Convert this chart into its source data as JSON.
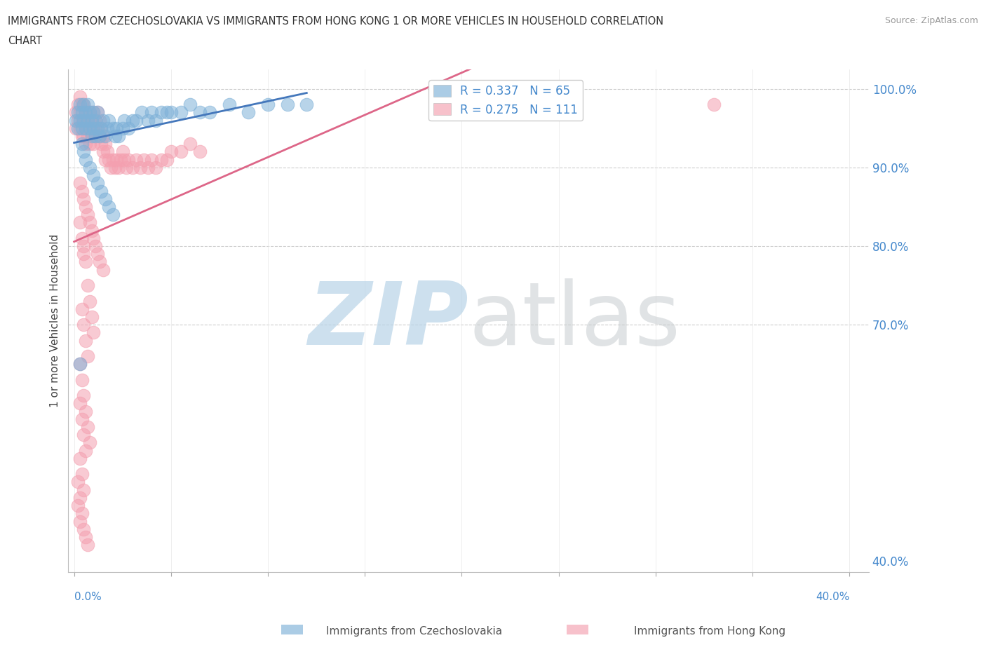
{
  "title": "IMMIGRANTS FROM CZECHOSLOVAKIA VS IMMIGRANTS FROM HONG KONG 1 OR MORE VEHICLES IN HOUSEHOLD CORRELATION\nCHART",
  "source": "Source: ZipAtlas.com",
  "ylabel": "1 or more Vehicles in Household",
  "ylabel_right_ticks": [
    "100.0%",
    "90.0%",
    "80.0%",
    "70.0%",
    "40.0%"
  ],
  "ylabel_right_vals": [
    1.0,
    0.9,
    0.8,
    0.7,
    0.4
  ],
  "xlim": [
    -0.003,
    0.41
  ],
  "ylim": [
    0.385,
    1.025
  ],
  "legend_r1": "R = 0.337",
  "legend_n1": "N = 65",
  "legend_r2": "R = 0.275",
  "legend_n2": "N = 111",
  "color_czech": "#7EB1D8",
  "color_hk": "#F4A0B0",
  "grid_color": "#CCCCCC",
  "background_color": "#FFFFFF",
  "czech_x": [
    0.001,
    0.002,
    0.002,
    0.003,
    0.003,
    0.004,
    0.004,
    0.005,
    0.005,
    0.006,
    0.006,
    0.007,
    0.007,
    0.008,
    0.008,
    0.009,
    0.009,
    0.01,
    0.01,
    0.011,
    0.011,
    0.012,
    0.012,
    0.013,
    0.014,
    0.015,
    0.016,
    0.017,
    0.018,
    0.02,
    0.021,
    0.022,
    0.023,
    0.025,
    0.026,
    0.028,
    0.03,
    0.032,
    0.035,
    0.038,
    0.04,
    0.042,
    0.045,
    0.048,
    0.05,
    0.055,
    0.06,
    0.065,
    0.07,
    0.08,
    0.09,
    0.1,
    0.11,
    0.12,
    0.004,
    0.005,
    0.006,
    0.008,
    0.01,
    0.012,
    0.014,
    0.016,
    0.018,
    0.02,
    0.003
  ],
  "czech_y": [
    0.96,
    0.97,
    0.95,
    0.98,
    0.96,
    0.97,
    0.95,
    0.98,
    0.96,
    0.97,
    0.95,
    0.98,
    0.96,
    0.97,
    0.95,
    0.96,
    0.94,
    0.97,
    0.95,
    0.96,
    0.94,
    0.97,
    0.95,
    0.94,
    0.95,
    0.96,
    0.94,
    0.95,
    0.96,
    0.95,
    0.94,
    0.95,
    0.94,
    0.95,
    0.96,
    0.95,
    0.96,
    0.96,
    0.97,
    0.96,
    0.97,
    0.96,
    0.97,
    0.97,
    0.97,
    0.97,
    0.98,
    0.97,
    0.97,
    0.98,
    0.97,
    0.98,
    0.98,
    0.98,
    0.93,
    0.92,
    0.91,
    0.9,
    0.89,
    0.88,
    0.87,
    0.86,
    0.85,
    0.84,
    0.65
  ],
  "hk_x": [
    0.001,
    0.001,
    0.002,
    0.002,
    0.003,
    0.003,
    0.003,
    0.004,
    0.004,
    0.004,
    0.005,
    0.005,
    0.005,
    0.006,
    0.006,
    0.006,
    0.007,
    0.007,
    0.008,
    0.008,
    0.008,
    0.009,
    0.009,
    0.01,
    0.01,
    0.01,
    0.011,
    0.011,
    0.012,
    0.012,
    0.013,
    0.013,
    0.014,
    0.014,
    0.015,
    0.015,
    0.016,
    0.016,
    0.017,
    0.018,
    0.019,
    0.02,
    0.021,
    0.022,
    0.023,
    0.024,
    0.025,
    0.026,
    0.027,
    0.028,
    0.03,
    0.032,
    0.034,
    0.036,
    0.038,
    0.04,
    0.042,
    0.045,
    0.048,
    0.05,
    0.055,
    0.06,
    0.065,
    0.003,
    0.004,
    0.005,
    0.006,
    0.007,
    0.008,
    0.009,
    0.01,
    0.011,
    0.012,
    0.013,
    0.015,
    0.003,
    0.004,
    0.005,
    0.005,
    0.006,
    0.007,
    0.008,
    0.009,
    0.01,
    0.004,
    0.005,
    0.006,
    0.007,
    0.003,
    0.004,
    0.005,
    0.006,
    0.007,
    0.008,
    0.003,
    0.004,
    0.005,
    0.006,
    0.002,
    0.003,
    0.004,
    0.005,
    0.006,
    0.007,
    0.003,
    0.004,
    0.005,
    0.002,
    0.003,
    0.33
  ],
  "hk_y": [
    0.97,
    0.95,
    0.98,
    0.96,
    0.99,
    0.97,
    0.95,
    0.98,
    0.96,
    0.94,
    0.98,
    0.96,
    0.94,
    0.97,
    0.95,
    0.93,
    0.96,
    0.94,
    0.97,
    0.95,
    0.93,
    0.96,
    0.94,
    0.97,
    0.95,
    0.93,
    0.96,
    0.94,
    0.97,
    0.95,
    0.96,
    0.94,
    0.95,
    0.93,
    0.94,
    0.92,
    0.93,
    0.91,
    0.92,
    0.91,
    0.9,
    0.91,
    0.9,
    0.91,
    0.9,
    0.91,
    0.92,
    0.91,
    0.9,
    0.91,
    0.9,
    0.91,
    0.9,
    0.91,
    0.9,
    0.91,
    0.9,
    0.91,
    0.91,
    0.92,
    0.92,
    0.93,
    0.92,
    0.88,
    0.87,
    0.86,
    0.85,
    0.84,
    0.83,
    0.82,
    0.81,
    0.8,
    0.79,
    0.78,
    0.77,
    0.83,
    0.81,
    0.8,
    0.79,
    0.78,
    0.75,
    0.73,
    0.71,
    0.69,
    0.72,
    0.7,
    0.68,
    0.66,
    0.65,
    0.63,
    0.61,
    0.59,
    0.57,
    0.55,
    0.6,
    0.58,
    0.56,
    0.54,
    0.5,
    0.48,
    0.46,
    0.44,
    0.43,
    0.42,
    0.53,
    0.51,
    0.49,
    0.47,
    0.45,
    0.98
  ]
}
